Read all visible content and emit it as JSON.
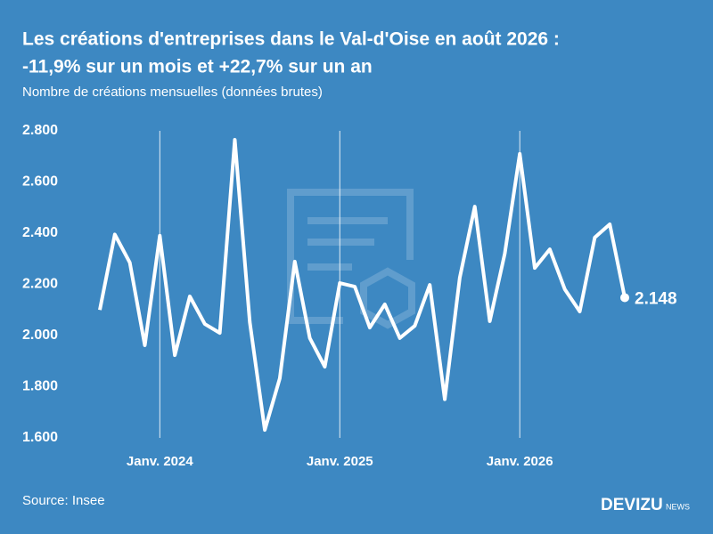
{
  "chart_data": {
    "type": "line",
    "title": [
      "Les créations d'entreprises dans le Val-d'Oise en août 2026 :",
      "-11,9% sur un mois et +22,7% sur un an"
    ],
    "subtitle": "Nombre de créations mensuelles (données brutes)",
    "source": "Source: Insee",
    "brand": {
      "name": "DEVIZU",
      "suffix": "NEWS"
    },
    "categories": [
      null,
      null,
      null,
      null,
      "Janv. 2024",
      null,
      null,
      null,
      null,
      null,
      null,
      null,
      null,
      null,
      null,
      null,
      "Janv. 2025",
      null,
      null,
      null,
      null,
      null,
      null,
      null,
      null,
      null,
      null,
      null,
      "Janv. 2026",
      null,
      null,
      null,
      null,
      null,
      null,
      null
    ],
    "series": [
      {
        "color": "#ffffff",
        "values": [
          2100,
          2395,
          2285,
          1962,
          2390,
          1923,
          2153,
          2045,
          2010,
          2765,
          2052,
          1631,
          1833,
          2289,
          1990,
          1878,
          2205,
          2191,
          2031,
          2122,
          1990,
          2038,
          2198,
          1751,
          2226,
          2504,
          2056,
          2320,
          2710,
          2264,
          2337,
          2181,
          2094,
          2383,
          2435,
          2148
        ],
        "value_labels": [
          null,
          null,
          null,
          null,
          null,
          null,
          null,
          null,
          null,
          null,
          null,
          null,
          null,
          null,
          null,
          null,
          null,
          null,
          null,
          null,
          null,
          null,
          null,
          null,
          null,
          null,
          null,
          null,
          null,
          null,
          null,
          null,
          null,
          null,
          null,
          "2.148"
        ]
      }
    ],
    "ylim": [
      1600,
      2800
    ],
    "yticks": [
      {
        "value": 1600,
        "label": "1.600"
      },
      {
        "value": 1800,
        "label": "1.800"
      },
      {
        "value": 2000,
        "label": "2.000"
      },
      {
        "value": 2200,
        "label": "2.200"
      },
      {
        "value": 2400,
        "label": "2.400"
      },
      {
        "value": 2600,
        "label": "2.600"
      },
      {
        "value": 2800,
        "label": "2.800"
      }
    ],
    "grid": "x"
  }
}
